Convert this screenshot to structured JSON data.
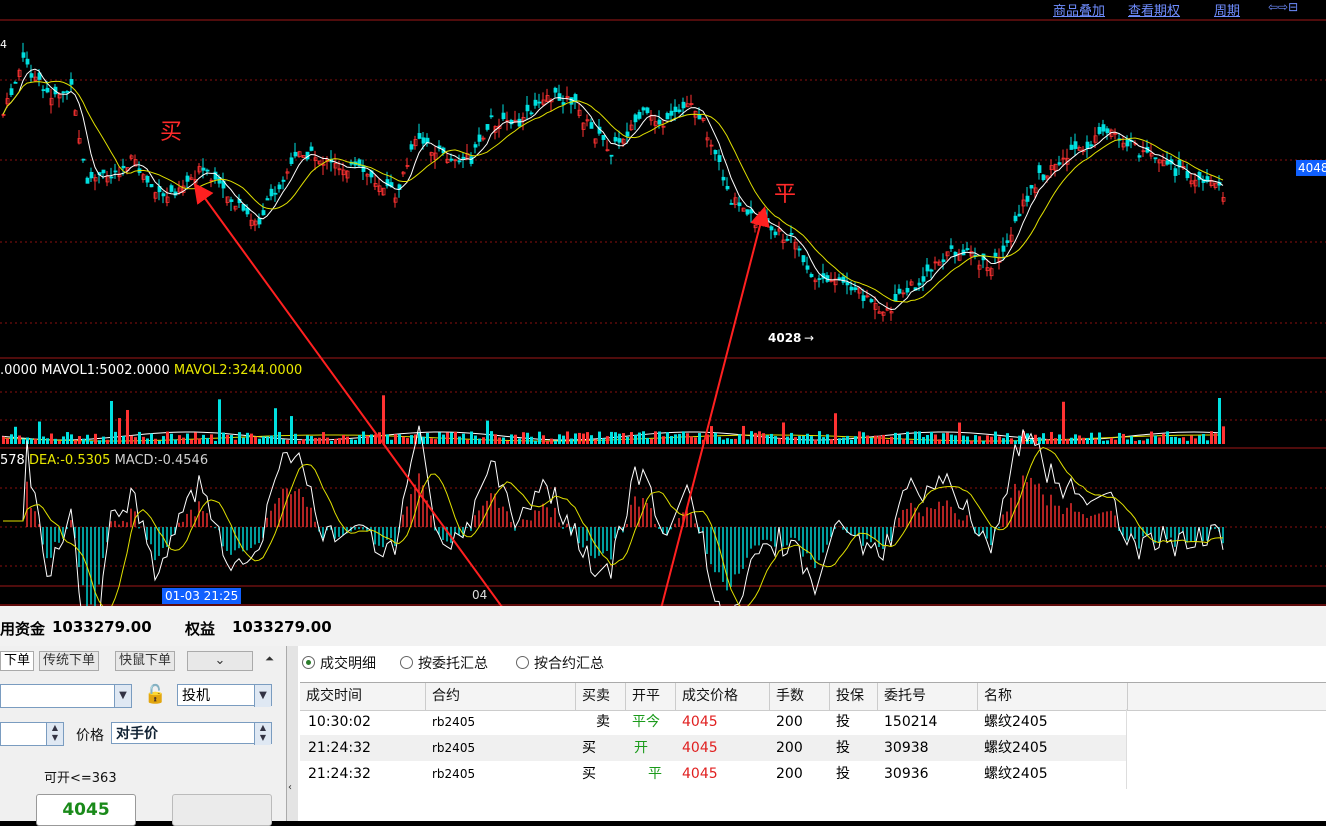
{
  "top_links": [
    "商品叠加",
    "查看期权",
    "周期"
  ],
  "price_chart": {
    "high_label": "4",
    "low_label": "4028",
    "current_price_tag": "4048",
    "buy_mark": "买",
    "close_mark": "平"
  },
  "volume_indicator": {
    "vol_tail": ".0000",
    "mavol1": "MAVOL1:5002.0000",
    "mavol2": "MAVOL2:3244.0000"
  },
  "macd_indicator": {
    "diff_tail": "578",
    "dea": "DEA:-0.5305",
    "macd": "MACD:-0.4546"
  },
  "time_axis": {
    "cursor_time": "01-03 21:25",
    "day_label": "04"
  },
  "account": {
    "available_label": "用资金",
    "available_value": "1033279.00",
    "equity_label": "权益",
    "equity_value": "1033279.00"
  },
  "order_panel": {
    "tabs": [
      "下单",
      "传统下单",
      "快鼠下单"
    ],
    "hedge_value": "投机",
    "price_label": "价格",
    "price_value": "对手价",
    "can_open": "可开<=363",
    "buy_button_price": "4045"
  },
  "detail_tabs": [
    "成交明细",
    "按委托汇总",
    "按合约汇总"
  ],
  "table": {
    "columns": [
      "成交时间",
      "合约",
      "买卖",
      "开平",
      "成交价格",
      "手数",
      "投保",
      "委托号",
      "名称"
    ],
    "rows": [
      {
        "time": "10:30:02",
        "contract": "rb2405",
        "side": "卖",
        "offset": "平今",
        "price": "4045",
        "qty": "200",
        "hedge": "投",
        "order_no": "150214",
        "name": "螺纹2405"
      },
      {
        "time": "21:24:32",
        "contract": "rb2405",
        "side": "买",
        "offset": "开",
        "price": "4045",
        "qty": "200",
        "hedge": "投",
        "order_no": "30938",
        "name": "螺纹2405"
      },
      {
        "time": "21:24:32",
        "contract": "rb2405",
        "side": "买",
        "offset": "平",
        "price": "4045",
        "qty": "200",
        "hedge": "投",
        "order_no": "30936",
        "name": "螺纹2405"
      }
    ]
  },
  "colors": {
    "up": "#ff3232",
    "down": "#00e0e0",
    "ma1": "#ffffff",
    "ma2": "#e0e000",
    "grid": "#8a1010",
    "accent": "#1060ff",
    "offset_green": "#1a9a1a",
    "price_red": "#e02020"
  }
}
